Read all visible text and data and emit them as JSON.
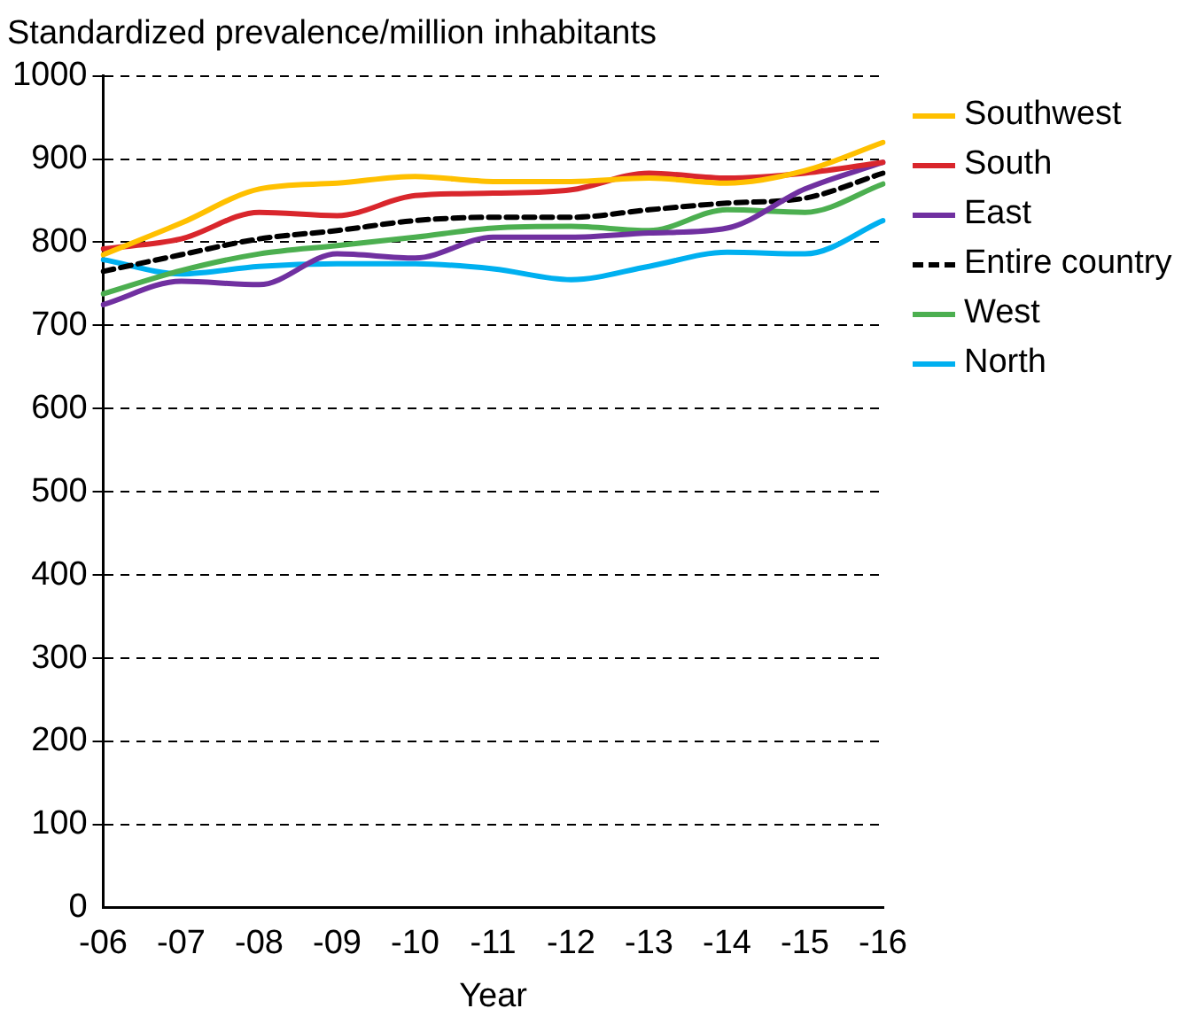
{
  "chart_data": {
    "type": "line",
    "title": "Standardized prevalence/million inhabitants",
    "xlabel": "Year",
    "categories": [
      "-06",
      "-07",
      "-08",
      "-09",
      "-10",
      "-11",
      "-12",
      "-13",
      "-14",
      "-15",
      "-16"
    ],
    "ylim": [
      0,
      1000
    ],
    "yticks": [
      0,
      100,
      200,
      300,
      400,
      500,
      600,
      700,
      800,
      900,
      1000
    ],
    "grid": "y",
    "legend": "right",
    "marker": "none",
    "line_style": "solid",
    "series": [
      {
        "name": "Southwest",
        "color": "#ffc000",
        "values": [
          785,
          823,
          864,
          871,
          879,
          873,
          873,
          877,
          871,
          886,
          920
        ]
      },
      {
        "name": "South",
        "color": "#d9262c",
        "values": [
          792,
          804,
          836,
          832,
          856,
          859,
          863,
          883,
          877,
          883,
          896
        ]
      },
      {
        "name": "East",
        "color": "#7030a0",
        "values": [
          725,
          753,
          749,
          786,
          781,
          806,
          806,
          811,
          817,
          864,
          896
        ]
      },
      {
        "name": "Entire country",
        "color": "#000000",
        "line_style": "dashed",
        "values": [
          765,
          785,
          804,
          814,
          826,
          830,
          830,
          839,
          847,
          853,
          883
        ]
      },
      {
        "name": "West",
        "color": "#4caf50",
        "values": [
          738,
          766,
          786,
          796,
          806,
          817,
          819,
          814,
          839,
          836,
          870
        ]
      },
      {
        "name": "North",
        "color": "#00b0f0",
        "values": [
          779,
          762,
          771,
          774,
          774,
          768,
          755,
          771,
          788,
          786,
          826
        ]
      }
    ]
  }
}
